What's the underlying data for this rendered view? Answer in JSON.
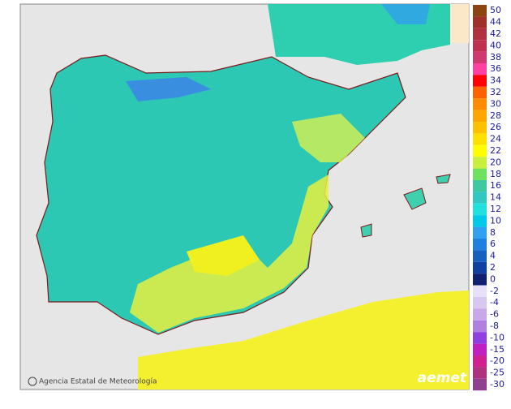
{
  "footer": {
    "credit": "Agencia Estatal de Meteorología",
    "logo": "aemet"
  },
  "legend": {
    "values": [
      50,
      44,
      42,
      40,
      38,
      36,
      34,
      32,
      30,
      28,
      26,
      24,
      22,
      20,
      18,
      16,
      14,
      12,
      10,
      8,
      6,
      4,
      2,
      0,
      -2,
      -4,
      -6,
      -8,
      -10,
      -15,
      -20,
      -25,
      -30
    ],
    "colors": [
      "#8b4513",
      "#a0302a",
      "#b03040",
      "#c03050",
      "#d03870",
      "#ff40a0",
      "#ff0000",
      "#ff6000",
      "#ff8c00",
      "#ffa500",
      "#ffc000",
      "#ffe000",
      "#ffff00",
      "#c8f03c",
      "#70e060",
      "#40c8a0",
      "#30c8c0",
      "#20e0e0",
      "#00c8e8",
      "#30a0f0",
      "#2080e0",
      "#1860c0",
      "#1040a0",
      "#102070",
      "#e8e0f8",
      "#d8c8f0",
      "#c8a8e8",
      "#b080e0",
      "#9040e0",
      "#c020c0",
      "#d02090",
      "#b03080",
      "#904090"
    ]
  }
}
